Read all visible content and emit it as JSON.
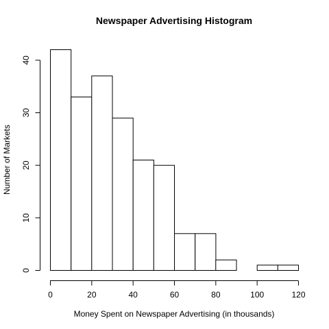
{
  "chart_data": {
    "type": "bar",
    "title": "Newspaper Advertising Histogram",
    "xlabel": "Money Spent on Newspaper Advertising (in thousands)",
    "ylabel": "Number of Markets",
    "bin_edges": [
      0,
      10,
      20,
      30,
      40,
      50,
      60,
      70,
      80,
      90,
      100,
      110,
      120
    ],
    "values": [
      42,
      33,
      37,
      29,
      21,
      20,
      7,
      7,
      2,
      0,
      1,
      1
    ],
    "xlim": [
      0,
      120
    ],
    "ylim": [
      0,
      42
    ],
    "x_ticks": [
      0,
      20,
      40,
      60,
      80,
      100,
      120
    ],
    "y_ticks": [
      0,
      10,
      20,
      30,
      40
    ],
    "grid": false,
    "legend": "none",
    "colors": {
      "bar_fill": "#ffffff",
      "bar_stroke": "#000000"
    }
  }
}
